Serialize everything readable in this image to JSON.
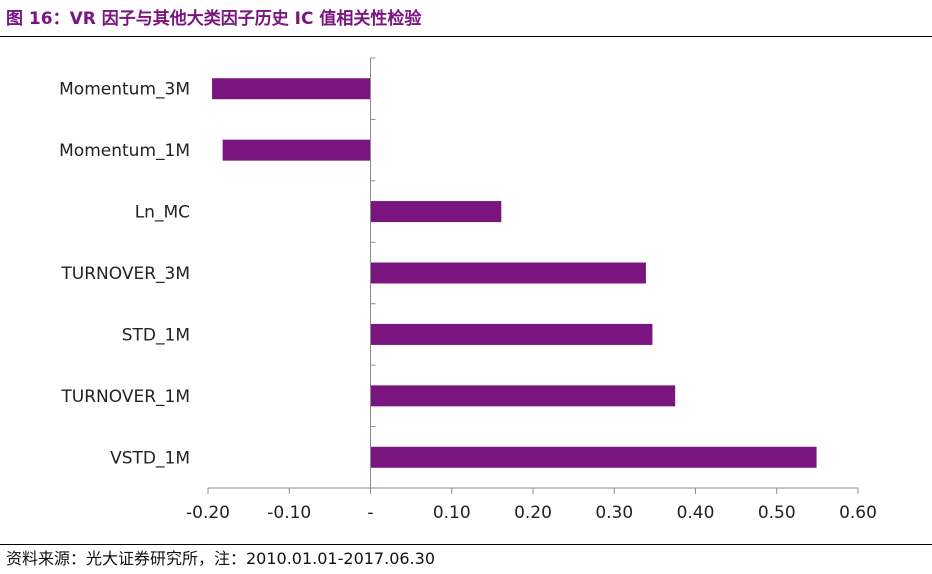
{
  "header": {
    "title": "图 16：VR 因子与其他大类因子历史 IC 值相关性检验"
  },
  "footer": {
    "source": "资料来源：光大证券研究所，注：2010.01.01-2017.06.30"
  },
  "colors": {
    "bar": "#7a1580",
    "title": "#7a1580",
    "axis": "#8c8c8c",
    "text": "#222222"
  },
  "chart_data": {
    "type": "bar",
    "orientation": "horizontal",
    "categories": [
      "Momentum_3M",
      "Momentum_1M",
      "Ln_MC",
      "TURNOVER_3M",
      "STD_1M",
      "TURNOVER_1M",
      "VSTD_1M"
    ],
    "values": [
      -0.195,
      -0.182,
      0.161,
      0.339,
      0.347,
      0.375,
      0.549
    ],
    "xlim": [
      -0.2,
      0.6
    ],
    "xticks": [
      -0.2,
      -0.1,
      0.0,
      0.1,
      0.2,
      0.3,
      0.4,
      0.5,
      0.6
    ],
    "xtick_labels": [
      "-0.20",
      "-0.10",
      "-",
      "0.10",
      "0.20",
      "0.30",
      "0.40",
      "0.50",
      "0.60"
    ],
    "title": "",
    "xlabel": "",
    "ylabel": "",
    "grid": false,
    "legend": false
  }
}
